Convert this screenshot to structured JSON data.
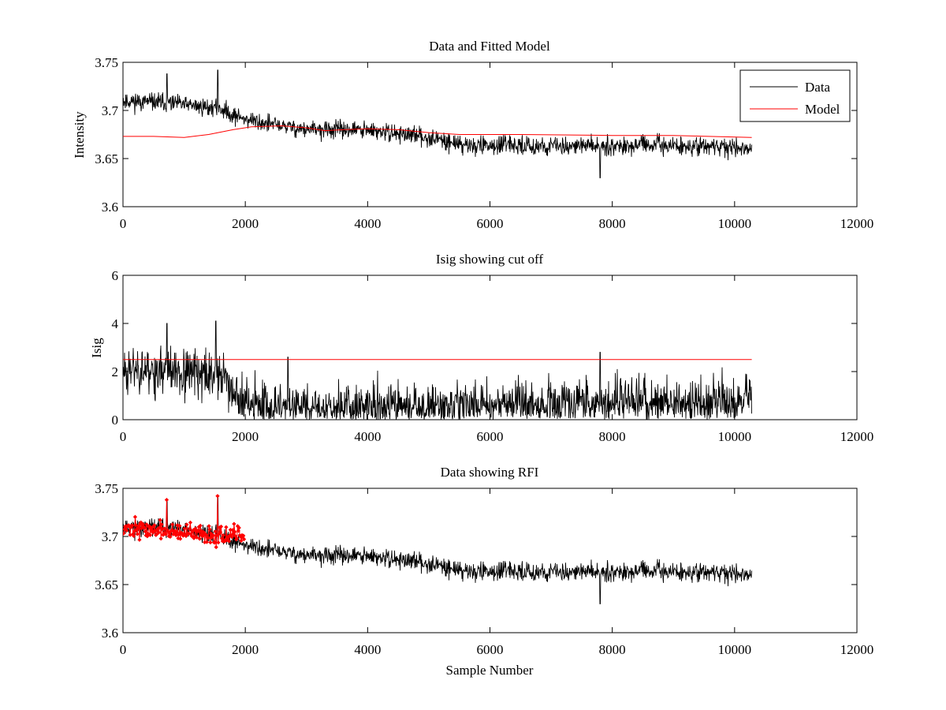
{
  "chart_data": [
    {
      "type": "line",
      "title": "Data and Fitted Model",
      "xlabel": "",
      "ylabel": "Intensity",
      "xlim": [
        0,
        12000
      ],
      "ylim": [
        3.6,
        3.75
      ],
      "xticks": [
        0,
        2000,
        4000,
        6000,
        8000,
        10000,
        12000
      ],
      "yticks": [
        3.6,
        3.65,
        3.7,
        3.75
      ],
      "xtick_labels": [
        "0",
        "2000",
        "4000",
        "6000",
        "8000",
        "10000",
        "12000"
      ],
      "ytick_labels": [
        "3.6",
        "3.65",
        "3.7",
        "3.75"
      ],
      "legend": {
        "location": "top-right",
        "entries": [
          {
            "label": "Data",
            "color": "#000000"
          },
          {
            "label": "Model",
            "color": "#ff0000"
          }
        ]
      },
      "series": [
        {
          "name": "Data",
          "color": "#000000",
          "style": "noisy-line",
          "seed": 11,
          "x_end": 10280,
          "trend": {
            "x": [
              0,
              700,
              1400,
              1600,
              1800,
              2200,
              3000,
              3800,
              4500,
              5000,
              5600,
              7000,
              8500,
              10280
            ],
            "y": [
              3.71,
              3.708,
              3.703,
              3.702,
              3.695,
              3.688,
              3.68,
              3.68,
              3.676,
              3.672,
              3.664,
              3.663,
              3.664,
              3.661
            ]
          },
          "noise_amplitude": 0.012,
          "spikes": [
            {
              "x": 1550,
              "y": 3.742
            },
            {
              "x": 720,
              "y": 3.738
            },
            {
              "x": 7800,
              "y": 3.63
            }
          ]
        },
        {
          "name": "Model",
          "color": "#ff0000",
          "style": "line",
          "x": [
            0,
            500,
            1000,
            1400,
            1800,
            2100,
            2600,
            3000,
            3300,
            3600,
            4000,
            4500,
            5000,
            5500,
            6500,
            8000,
            9000,
            10280
          ],
          "y": [
            3.673,
            3.673,
            3.672,
            3.675,
            3.68,
            3.683,
            3.684,
            3.682,
            3.679,
            3.68,
            3.681,
            3.68,
            3.677,
            3.675,
            3.675,
            3.674,
            3.674,
            3.672
          ]
        }
      ]
    },
    {
      "type": "line",
      "title": "Isig showing cut off",
      "xlabel": "",
      "ylabel": "Isig",
      "xlim": [
        0,
        12000
      ],
      "ylim": [
        0,
        6
      ],
      "xticks": [
        0,
        2000,
        4000,
        6000,
        8000,
        10000,
        12000
      ],
      "yticks": [
        0,
        2,
        4,
        6
      ],
      "xtick_labels": [
        "0",
        "2000",
        "4000",
        "6000",
        "8000",
        "10000",
        "12000"
      ],
      "ytick_labels": [
        "0",
        "2",
        "4",
        "6"
      ],
      "series": [
        {
          "name": "Isig",
          "color": "#000000",
          "style": "noisy-positive",
          "seed": 23,
          "x_end": 10280,
          "trend": {
            "x": [
              0,
              700,
              1700,
              1900,
              2100,
              3000,
              5000,
              6500,
              10280
            ],
            "y": [
              2.2,
              2.0,
              1.8,
              0.8,
              0.5,
              0.45,
              0.5,
              0.7,
              0.75
            ]
          },
          "noise_amplitude": 0.9,
          "spikes": [
            {
              "x": 1520,
              "y": 4.1
            },
            {
              "x": 720,
              "y": 4.0
            },
            {
              "x": 7800,
              "y": 2.8
            },
            {
              "x": 2700,
              "y": 2.6
            }
          ]
        },
        {
          "name": "Cut off",
          "color": "#ff0000",
          "style": "line",
          "x": [
            0,
            10280
          ],
          "y": [
            2.5,
            2.5
          ]
        }
      ]
    },
    {
      "type": "line",
      "title": "Data showing RFI",
      "xlabel": "Sample Number",
      "ylabel": "",
      "xlim": [
        0,
        12000
      ],
      "ylim": [
        3.6,
        3.75
      ],
      "xticks": [
        0,
        2000,
        4000,
        6000,
        8000,
        10000,
        12000
      ],
      "yticks": [
        3.6,
        3.65,
        3.7,
        3.75
      ],
      "xtick_labels": [
        "0",
        "2000",
        "4000",
        "6000",
        "8000",
        "10000",
        "12000"
      ],
      "ytick_labels": [
        "3.6",
        "3.65",
        "3.7",
        "3.75"
      ],
      "series": [
        {
          "name": "Data",
          "color": "#000000",
          "style": "noisy-line",
          "seed": 11,
          "x_end": 10280,
          "trend": {
            "x": [
              0,
              700,
              1400,
              1600,
              1800,
              2200,
              3000,
              3800,
              4500,
              5000,
              5600,
              7000,
              8500,
              10280
            ],
            "y": [
              3.71,
              3.708,
              3.703,
              3.702,
              3.695,
              3.688,
              3.68,
              3.68,
              3.676,
              3.672,
              3.664,
              3.663,
              3.664,
              3.661
            ]
          },
          "noise_amplitude": 0.012,
          "spikes": [
            {
              "x": 1550,
              "y": 3.742
            },
            {
              "x": 720,
              "y": 3.738
            },
            {
              "x": 7800,
              "y": 3.63
            }
          ]
        },
        {
          "name": "RFI",
          "color": "#ff0000",
          "style": "markers",
          "seed": 37,
          "x_start": 0,
          "x_end": 1980,
          "count": 170,
          "trend": {
            "x": [
              0,
              1000,
              1980
            ],
            "y": [
              3.71,
              3.703,
              3.7
            ]
          },
          "noise_amplitude": 0.012,
          "spikes": [
            {
              "x": 1550,
              "y": 3.742
            },
            {
              "x": 720,
              "y": 3.738
            }
          ]
        }
      ]
    }
  ]
}
